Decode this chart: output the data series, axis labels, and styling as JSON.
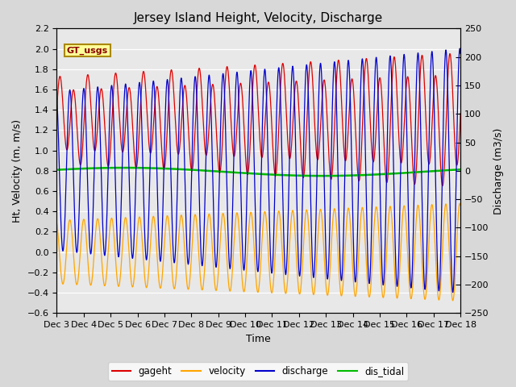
{
  "title": "Jersey Island Height, Velocity, Discharge",
  "xlabel": "Time",
  "ylabel_left": "Ht, Velocity (m, m/s)",
  "ylabel_right": "Discharge (m3/s)",
  "ylim_left": [
    -0.6,
    2.2
  ],
  "ylim_right": [
    -250,
    250
  ],
  "color_gageht": "#dd0000",
  "color_velocity": "#ffa500",
  "color_discharge": "#0000cc",
  "color_dis_tidal": "#00bb00",
  "color_gt_usgs_bg": "#ffff99",
  "color_gt_usgs_border": "#aa8800",
  "color_gt_usgs_text": "#880000",
  "background_color": "#d8d8d8",
  "plot_bg_color": "#e8e8e8",
  "tidal_period_hours": 12.42,
  "dis_tidal_mean": 0.79,
  "dis_tidal_amp": 0.04
}
